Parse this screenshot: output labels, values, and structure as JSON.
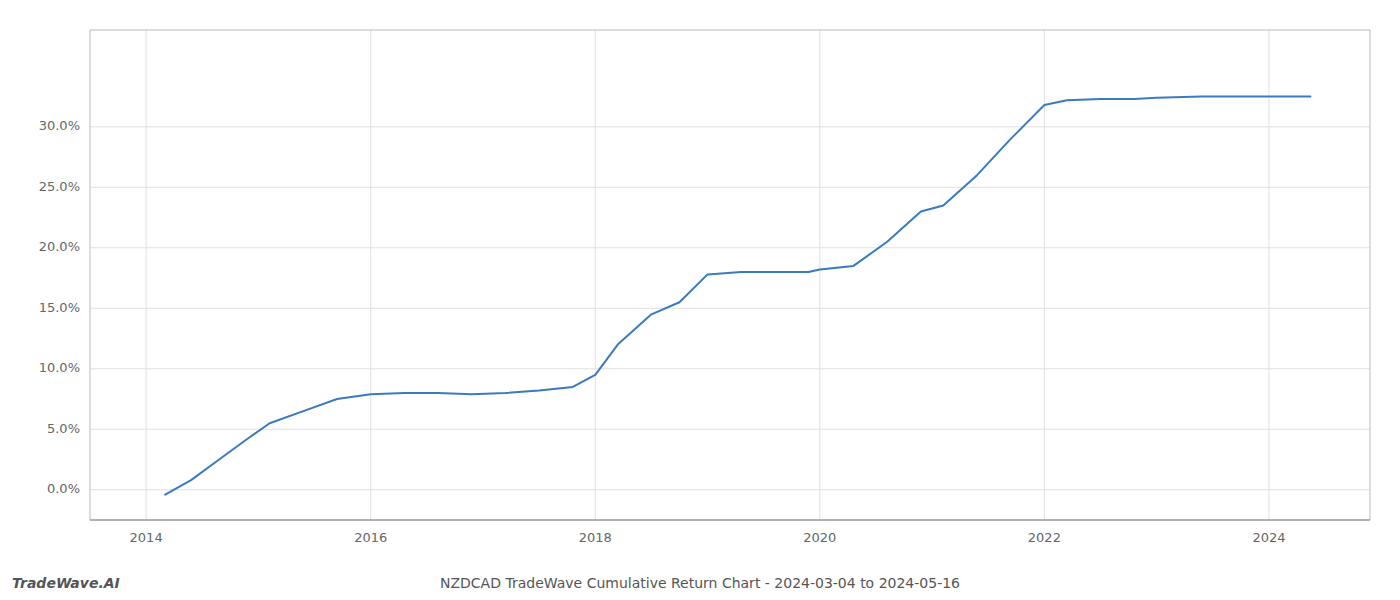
{
  "chart_data": {
    "type": "line",
    "title": "NZDCAD TradeWave Cumulative Return Chart - 2024-03-04 to 2024-05-16",
    "annotations": [
      "TradeWave.AI"
    ],
    "x": [
      2014.17,
      2014.4,
      2014.65,
      2014.9,
      2015.1,
      2015.4,
      2015.7,
      2016.0,
      2016.3,
      2016.6,
      2016.9,
      2017.2,
      2017.5,
      2017.8,
      2018.0,
      2018.2,
      2018.5,
      2018.75,
      2019.0,
      2019.3,
      2019.6,
      2019.9,
      2020.0,
      2020.3,
      2020.6,
      2020.9,
      2021.1,
      2021.4,
      2021.7,
      2022.0,
      2022.2,
      2022.5,
      2022.8,
      2023.0,
      2023.4,
      2023.8,
      2024.0,
      2024.37
    ],
    "values": [
      -0.4,
      0.8,
      2.5,
      4.2,
      5.5,
      6.5,
      7.5,
      7.9,
      8.0,
      8.0,
      7.9,
      8.0,
      8.2,
      8.5,
      9.5,
      12.0,
      14.5,
      15.5,
      17.8,
      18.0,
      18.0,
      18.0,
      18.2,
      18.5,
      20.5,
      23.0,
      23.5,
      26.0,
      29.0,
      31.8,
      32.2,
      32.3,
      32.3,
      32.4,
      32.5,
      32.5,
      32.5,
      32.5
    ],
    "color": "#3a7abf",
    "xlim": [
      2013.5,
      2024.9
    ],
    "ylim": [
      -2.5,
      38
    ],
    "xticks": [
      2014,
      2016,
      2018,
      2020,
      2022,
      2024
    ],
    "yticks": [
      {
        "value": 0.0,
        "label": "0.0%"
      },
      {
        "value": 5.0,
        "label": "5.0%"
      },
      {
        "value": 10.0,
        "label": "10.0%"
      },
      {
        "value": 15.0,
        "label": "15.0%"
      },
      {
        "value": 20.0,
        "label": "20.0%"
      },
      {
        "value": 25.0,
        "label": "25.0%"
      },
      {
        "value": 30.0,
        "label": "30.0%"
      }
    ],
    "grid": true
  }
}
